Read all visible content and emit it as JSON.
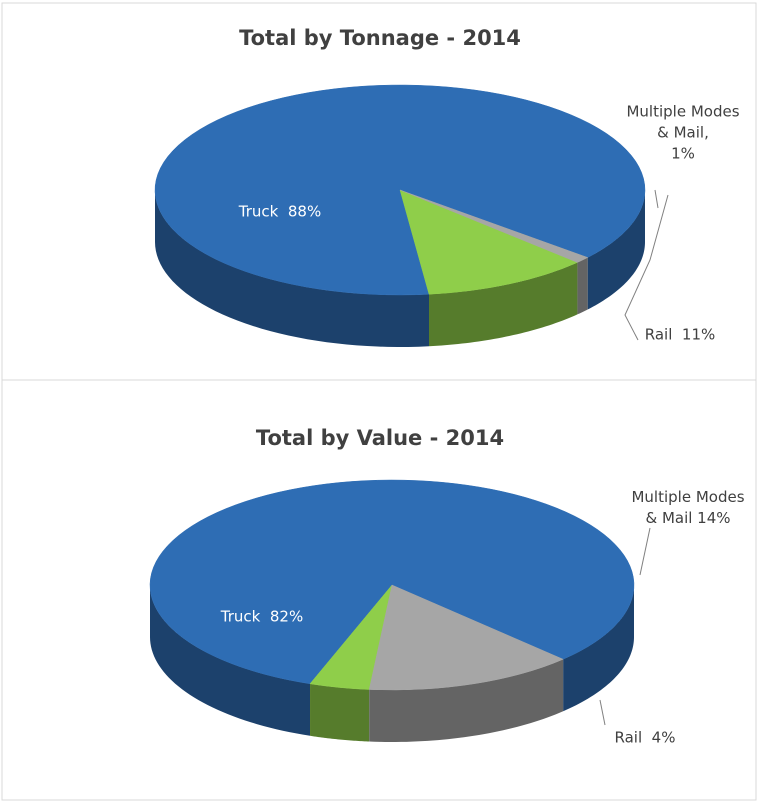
{
  "chart_data": [
    {
      "type": "pie",
      "title": "Total by Tonnage - 2014",
      "values": [
        88,
        11,
        1
      ],
      "value_labels": [
        "Truck  88%",
        "Rail  11%",
        "Multiple Modes\n& Mail,\n1%"
      ],
      "colors": [
        "#2e6db4",
        "#8fce4a",
        "#a6a6a6"
      ]
    },
    {
      "type": "pie",
      "title": "Total by Value - 2014",
      "values": [
        82,
        4,
        14
      ],
      "value_labels": [
        "Truck  82%",
        "Rail  4%",
        "Multiple Modes\n& Mail 14%"
      ],
      "colors": [
        "#2e6db4",
        "#8fce4a",
        "#a6a6a6"
      ]
    }
  ]
}
